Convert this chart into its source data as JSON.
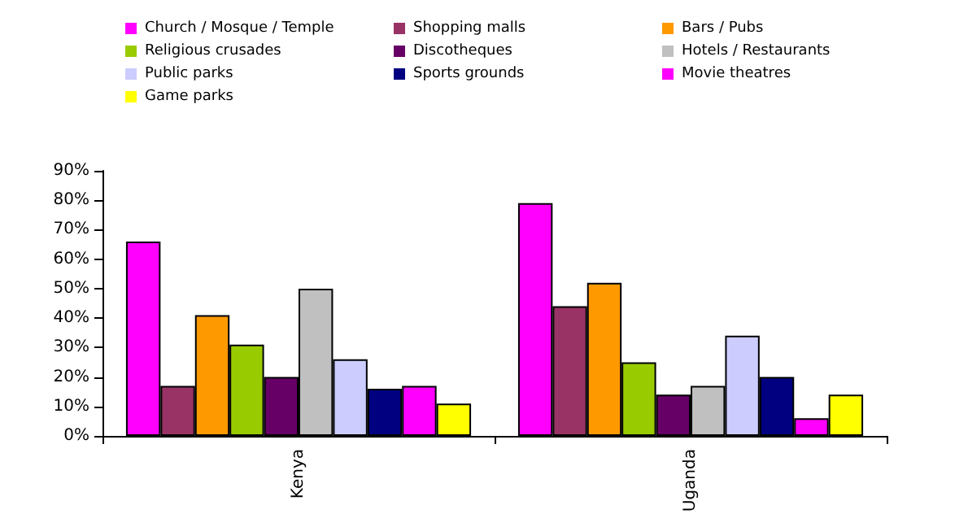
{
  "chart_data": {
    "type": "bar",
    "categories": [
      "Kenya",
      "Uganda"
    ],
    "series": [
      {
        "name": "Church / Mosque / Temple",
        "color": "#ff00ff",
        "values": [
          66,
          79
        ]
      },
      {
        "name": "Shopping malls",
        "color": "#993366",
        "values": [
          17,
          44
        ]
      },
      {
        "name": "Bars / Pubs",
        "color": "#ff9900",
        "values": [
          41,
          52
        ]
      },
      {
        "name": "Religious crusades",
        "color": "#99cc00",
        "values": [
          31,
          25
        ]
      },
      {
        "name": "Discotheques",
        "color": "#660066",
        "values": [
          20,
          14
        ]
      },
      {
        "name": "Hotels / Restaurants",
        "color": "#c0c0c0",
        "values": [
          50,
          17
        ]
      },
      {
        "name": "Public parks",
        "color": "#ccccff",
        "values": [
          26,
          34
        ]
      },
      {
        "name": "Sports grounds",
        "color": "#000080",
        "values": [
          16,
          20
        ]
      },
      {
        "name": "Movie theatres",
        "color": "#ff00fe",
        "values": [
          17,
          6
        ]
      },
      {
        "name": "Game parks",
        "color": "#ffff00",
        "values": [
          11,
          14
        ]
      }
    ],
    "ylim": [
      0,
      90
    ],
    "yticks": [
      {
        "value": 0,
        "label": "0%"
      },
      {
        "value": 10,
        "label": "10%"
      },
      {
        "value": 20,
        "label": "20%"
      },
      {
        "value": 30,
        "label": "30%"
      },
      {
        "value": 40,
        "label": "40%"
      },
      {
        "value": 50,
        "label": "50%"
      },
      {
        "value": 60,
        "label": "60%"
      },
      {
        "value": 70,
        "label": "70%"
      },
      {
        "value": 80,
        "label": "80%"
      },
      {
        "value": 90,
        "label": "90%"
      }
    ],
    "grid": false,
    "legend": "top"
  }
}
